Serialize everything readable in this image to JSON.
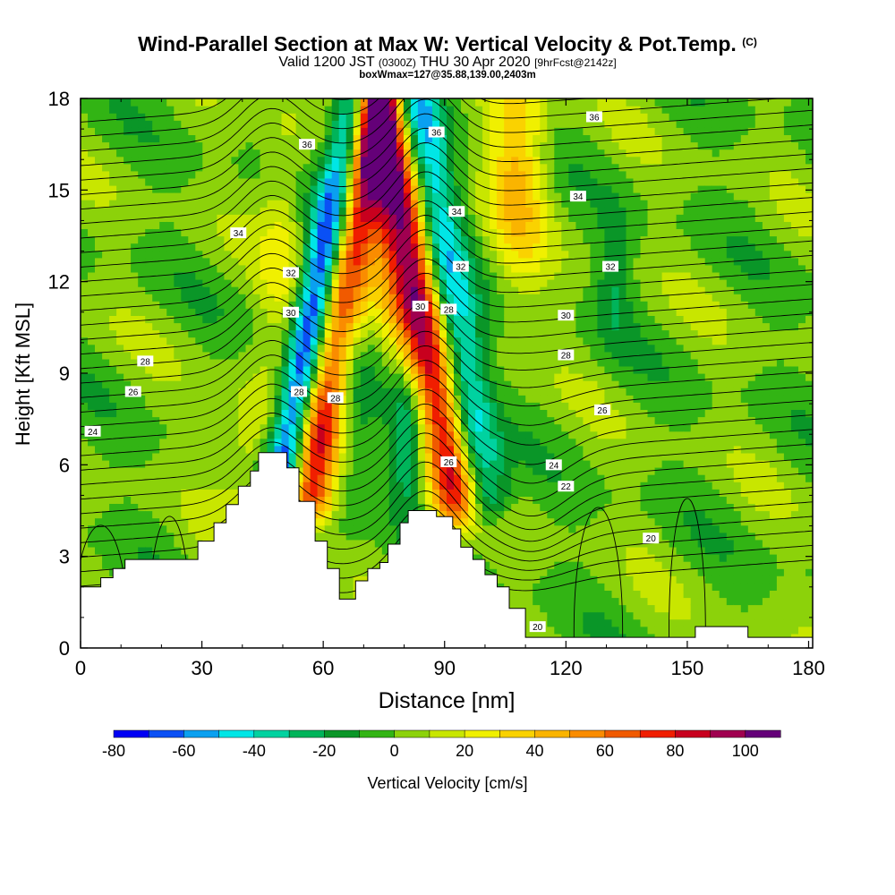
{
  "header": {
    "title_main": "Wind-Parallel Section at Max W: Vertical Velocity & Pot.Temp.",
    "title_mark": "(C)",
    "valid_a": "Valid 1200 JST",
    "valid_b": "(0300Z)",
    "valid_c": "THU 30 Apr 2020",
    "valid_d": "[9hrFcst@2142z]",
    "box_line": "boxWmax=127@35.88,139.00,2403m"
  },
  "chart_data": {
    "type": "heatmap",
    "xlabel": "Distance [nm]",
    "ylabel": "Height [Kft MSL]",
    "xlim": [
      0,
      181
    ],
    "ylim": [
      0,
      18
    ],
    "xticks": [
      0,
      30,
      60,
      90,
      120,
      150,
      180
    ],
    "yticks": [
      0,
      3,
      6,
      9,
      12,
      15,
      18
    ],
    "colorbar": {
      "label": "Vertical Velocity [cm/s]",
      "tick_labels": [
        -80,
        -60,
        -40,
        -20,
        0,
        20,
        40,
        60,
        80,
        100
      ],
      "levels": [
        -80,
        -70,
        -60,
        -50,
        -40,
        -30,
        -20,
        -10,
        0,
        10,
        20,
        30,
        40,
        50,
        60,
        70,
        80,
        90,
        100,
        110
      ],
      "colors": [
        "#0000f5",
        "#0a50f5",
        "#0aa0f0",
        "#00e6e6",
        "#00d2a0",
        "#00b45a",
        "#0a9628",
        "#32b414",
        "#8cd20a",
        "#c8e600",
        "#f0f000",
        "#fad200",
        "#fab400",
        "#fa8c00",
        "#f05a00",
        "#f01e00",
        "#c8001e",
        "#a00050",
        "#640078"
      ]
    },
    "terrain": [
      [
        0,
        2.0
      ],
      [
        5,
        2.0
      ],
      [
        5,
        2.3
      ],
      [
        8,
        2.3
      ],
      [
        8,
        2.6
      ],
      [
        11,
        2.6
      ],
      [
        11,
        2.9
      ],
      [
        14,
        2.9
      ],
      [
        29,
        2.9
      ],
      [
        29,
        3.5
      ],
      [
        33,
        3.5
      ],
      [
        33,
        4.1
      ],
      [
        36,
        4.1
      ],
      [
        36,
        4.7
      ],
      [
        39,
        4.7
      ],
      [
        39,
        5.3
      ],
      [
        42,
        5.3
      ],
      [
        42,
        5.8
      ],
      [
        44,
        5.8
      ],
      [
        44,
        6.4
      ],
      [
        51,
        6.4
      ],
      [
        51,
        5.9
      ],
      [
        54,
        5.9
      ],
      [
        54,
        4.8
      ],
      [
        58,
        4.8
      ],
      [
        58,
        3.5
      ],
      [
        61,
        3.5
      ],
      [
        61,
        2.6
      ],
      [
        64,
        2.6
      ],
      [
        64,
        1.6
      ],
      [
        68,
        1.6
      ],
      [
        68,
        2.2
      ],
      [
        71,
        2.2
      ],
      [
        71,
        2.6
      ],
      [
        74,
        2.6
      ],
      [
        74,
        2.8
      ],
      [
        76,
        2.8
      ],
      [
        76,
        3.4
      ],
      [
        79,
        3.4
      ],
      [
        79,
        4.1
      ],
      [
        81,
        4.1
      ],
      [
        81,
        4.5
      ],
      [
        88,
        4.5
      ],
      [
        88,
        4.3
      ],
      [
        92,
        4.3
      ],
      [
        92,
        3.9
      ],
      [
        94,
        3.9
      ],
      [
        94,
        3.3
      ],
      [
        97,
        3.3
      ],
      [
        97,
        2.9
      ],
      [
        100,
        2.9
      ],
      [
        100,
        2.4
      ],
      [
        103,
        2.4
      ],
      [
        103,
        2.0
      ],
      [
        106,
        2.0
      ],
      [
        106,
        1.3
      ],
      [
        110,
        1.3
      ],
      [
        110,
        0.35
      ],
      [
        152,
        0.35
      ],
      [
        152,
        0.7
      ],
      [
        165,
        0.7
      ],
      [
        165,
        0.35
      ],
      [
        181,
        0.35
      ]
    ],
    "w_field": {
      "background_min": -12,
      "background_max": 14,
      "features": [
        {
          "kind": "slant",
          "amp": -80,
          "x0": 50,
          "z0": 6.0,
          "x1": 68,
          "z1": 18.0,
          "width": 3.2
        },
        {
          "kind": "slant",
          "amp": 75,
          "x0": 57,
          "z0": 5.0,
          "x1": 73,
          "z1": 18.0,
          "width": 3.8
        },
        {
          "kind": "slant",
          "amp": -80,
          "x0": 99,
          "z0": 5.0,
          "x1": 82,
          "z1": 18.0,
          "width": 4.2
        },
        {
          "kind": "slant",
          "amp": 100,
          "x0": 94,
          "z0": 5.0,
          "x1": 75,
          "z1": 18.0,
          "width": 4.8
        },
        {
          "kind": "blob",
          "amp": 40,
          "x": 108,
          "z": 16.0,
          "sx": 5,
          "sz": 3.0
        },
        {
          "kind": "blob",
          "amp": 20,
          "x": 78,
          "z": 13.5,
          "sx": 8,
          "sz": 3.0
        },
        {
          "kind": "blob",
          "amp": 20,
          "x": 50,
          "z": 13.5,
          "sx": 4,
          "sz": 3.0
        },
        {
          "kind": "blob",
          "amp": 22,
          "x": 43,
          "z": 6.5,
          "sx": 6,
          "sz": 1.6
        },
        {
          "kind": "blob",
          "amp": -40,
          "x": 81,
          "z": 7.0,
          "sx": 3,
          "sz": 1.7
        },
        {
          "kind": "blob",
          "amp": -20,
          "x": 67,
          "z": 8.0,
          "sx": 4,
          "sz": 2.5
        },
        {
          "kind": "blob",
          "amp": -20,
          "x": 132,
          "z": 12.0,
          "sx": 3,
          "sz": 1.5
        }
      ]
    },
    "theta_contours": [
      {
        "label": "20",
        "label_pos": [
          188,
          20
        ]
      },
      {
        "label": "22",
        "label_pos": [
          123,
          5.4
        ]
      },
      {
        "label": "24",
        "label_pos": [
          4,
          7.1
        ]
      },
      {
        "label": "24",
        "label_pos": [
          122,
          6.0
        ]
      },
      {
        "label": "26",
        "label_pos": [
          133,
          7.8
        ]
      },
      {
        "label": "28",
        "label_pos": [
          134,
          9.6
        ]
      }
    ],
    "theta_labels": [
      {
        "text": "36",
        "x": 127,
        "z": 17.4
      },
      {
        "text": "36",
        "x": 88,
        "z": 16.9
      },
      {
        "text": "36",
        "x": 56,
        "z": 16.5
      },
      {
        "text": "34",
        "x": 123,
        "z": 14.8
      },
      {
        "text": "34",
        "x": 93,
        "z": 14.3
      },
      {
        "text": "34",
        "x": 39,
        "z": 13.6
      },
      {
        "text": "32",
        "x": 131,
        "z": 12.5
      },
      {
        "text": "32",
        "x": 94,
        "z": 12.5
      },
      {
        "text": "32",
        "x": 52,
        "z": 12.3
      },
      {
        "text": "30",
        "x": 120,
        "z": 10.9
      },
      {
        "text": "30",
        "x": 84,
        "z": 11.2
      },
      {
        "text": "30",
        "x": 52,
        "z": 11.0
      },
      {
        "text": "28",
        "x": 91,
        "z": 11.1
      },
      {
        "text": "28",
        "x": 120,
        "z": 9.6
      },
      {
        "text": "28",
        "x": 16,
        "z": 9.4
      },
      {
        "text": "28",
        "x": 54,
        "z": 8.4
      },
      {
        "text": "28",
        "x": 63,
        "z": 8.2
      },
      {
        "text": "26",
        "x": 13,
        "z": 8.4
      },
      {
        "text": "26",
        "x": 129,
        "z": 7.8
      },
      {
        "text": "26",
        "x": 91,
        "z": 6.1
      },
      {
        "text": "24",
        "x": 3,
        "z": 7.1
      },
      {
        "text": "24",
        "x": 117,
        "z": 6.0
      },
      {
        "text": "22",
        "x": 120,
        "z": 5.3
      },
      {
        "text": "20",
        "x": 141,
        "z": 3.6
      },
      {
        "text": "20",
        "x": 113,
        "z": 0.7
      }
    ]
  }
}
